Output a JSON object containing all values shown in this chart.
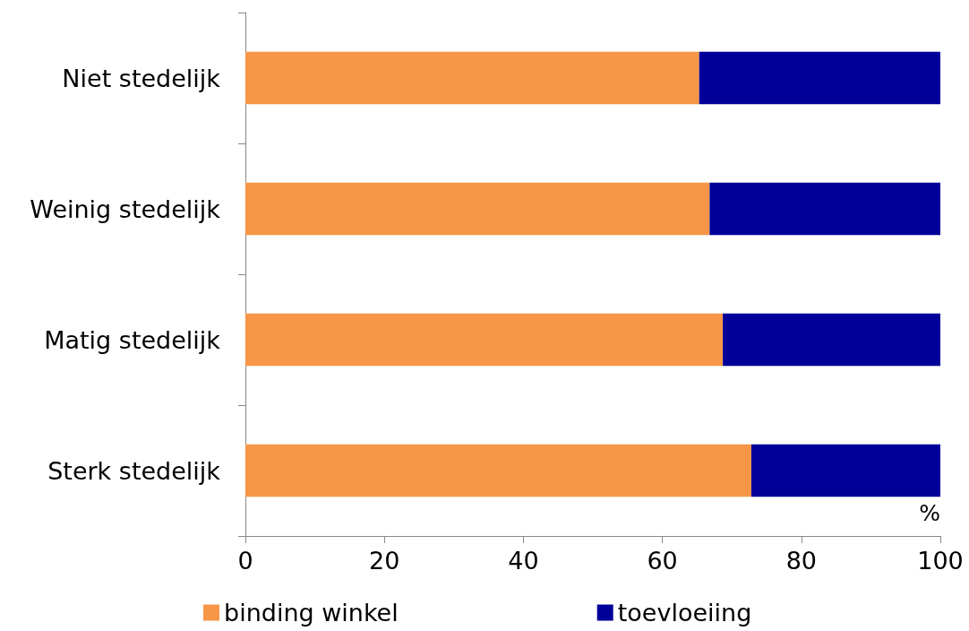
{
  "chart_data": {
    "type": "bar",
    "orientation": "horizontal",
    "stacked": true,
    "xlabel": "%",
    "categories": [
      "Niet stedelijk",
      "Weinig stedelijk",
      "Matig stedelijk",
      "Sterk stedelijk"
    ],
    "series": [
      {
        "name": "binding winkel",
        "color": "#f79646",
        "values": [
          65.3,
          66.8,
          68.7,
          72.8
        ]
      },
      {
        "name": "toevloeiing",
        "color": "#000099",
        "values": [
          34.7,
          33.2,
          31.3,
          27.2
        ]
      }
    ],
    "xlim": [
      0,
      100
    ],
    "xticks": [
      0,
      20,
      40,
      60,
      80,
      100
    ],
    "grid": false,
    "legend": "bottom"
  }
}
